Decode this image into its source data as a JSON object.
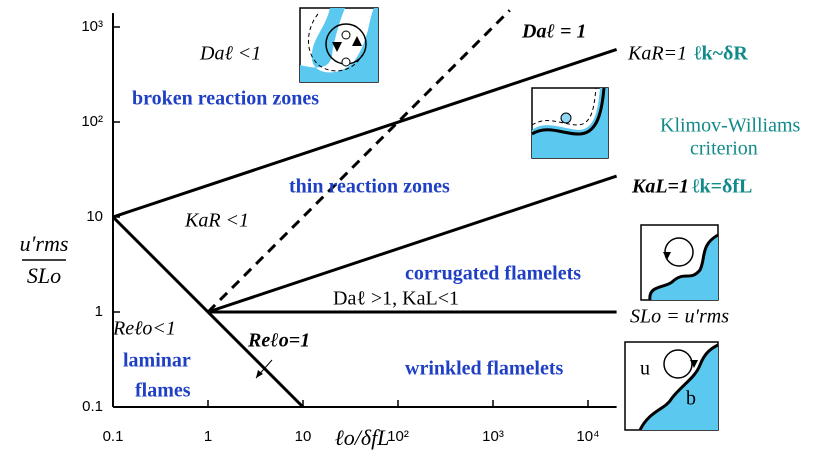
{
  "chart_data": {
    "type": "line",
    "log_x": true,
    "log_y": true,
    "xlabel": "ℓo/δfL",
    "ylabel": {
      "numerator": "u′rms",
      "denominator": "SLo"
    },
    "xlim": [
      0.1,
      20000
    ],
    "ylim": [
      0.1,
      1400
    ],
    "xticks": [
      0.1,
      1,
      10,
      {
        "value": 100,
        "label": "10²"
      },
      {
        "value": 1000,
        "label": "10³"
      },
      {
        "value": 10000,
        "label": "10⁴"
      }
    ],
    "yticks": [
      0.1,
      1,
      10,
      {
        "value": 100,
        "label": "10²"
      },
      {
        "value": 1000,
        "label": "10³"
      }
    ],
    "series": [
      {
        "x": [
          0.1,
          20000
        ],
        "values": [
          10,
          580
        ],
        "color": "#000000",
        "style": "solid"
      },
      {
        "x": [
          1,
          20000
        ],
        "values": [
          1,
          27
        ],
        "color": "#000000",
        "style": "solid"
      },
      {
        "x": [
          1,
          1500
        ],
        "values": [
          1,
          1500
        ],
        "color": "#000000",
        "style": "dashed"
      },
      {
        "x": [
          0.1,
          10
        ],
        "values": [
          10,
          0.1
        ],
        "color": "#000000",
        "style": "solid"
      },
      {
        "x": [
          1,
          20000
        ],
        "values": [
          1,
          1
        ],
        "color": "#000000",
        "style": "solid"
      }
    ],
    "annotations": [
      {
        "text": "Daℓ <1",
        "style": "italic"
      },
      {
        "text": "broken reaction zones",
        "style": "blue"
      },
      {
        "text": "Daℓ = 1",
        "style": "bold-italic"
      },
      {
        "text": "KaR=1",
        "style": "italic"
      },
      {
        "text": "ℓk~δR",
        "style": "teal-bold"
      },
      {
        "text": "Klimov-Williams",
        "style": "teal"
      },
      {
        "text": "criterion",
        "style": "teal"
      },
      {
        "text": "thin reaction zones",
        "style": "blue"
      },
      {
        "text": "KaL=1",
        "style": "bold-italic"
      },
      {
        "text": "ℓk=δfL",
        "style": "teal-bold"
      },
      {
        "text": "KaR <1",
        "style": "italic"
      },
      {
        "text": "corrugated flamelets",
        "style": "blue"
      },
      {
        "text": "Daℓ >1, KaL<1",
        "style": "plain"
      },
      {
        "text": "SLo = u′rms",
        "style": "italic"
      },
      {
        "text": "Reℓo<1",
        "style": "italic"
      },
      {
        "text": "laminar",
        "style": "blue"
      },
      {
        "text": "flames",
        "style": "blue"
      },
      {
        "text": "Reℓo=1",
        "style": "bold-italic"
      },
      {
        "text": "wrinkled flamelets",
        "style": "blue"
      },
      {
        "text": "u",
        "style": "plain"
      },
      {
        "text": "b",
        "style": "plain"
      }
    ]
  }
}
